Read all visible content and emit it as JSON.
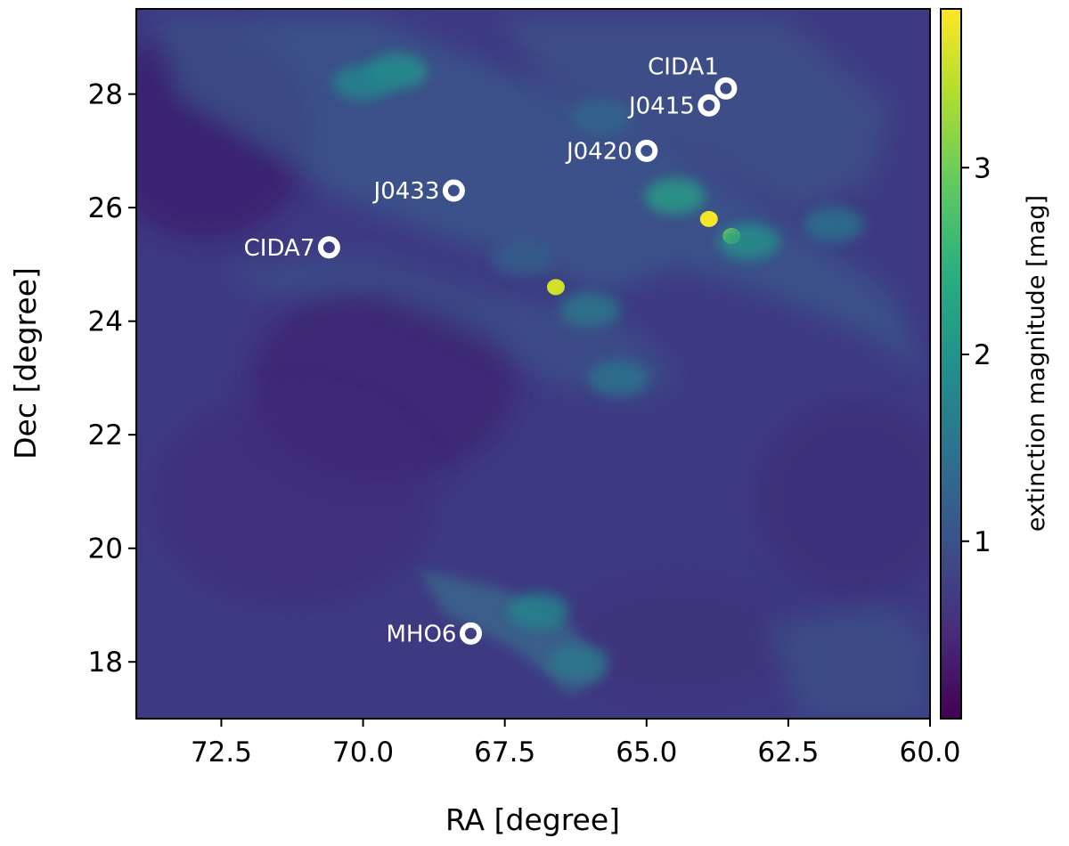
{
  "chart_data": {
    "type": "heatmap",
    "title": "",
    "xlabel": "RA [degree]",
    "ylabel": "Dec [degree]",
    "xlim": [
      74.0,
      60.0
    ],
    "ylim": [
      17.0,
      29.5
    ],
    "x_ticks": [
      72.5,
      70.0,
      67.5,
      65.0,
      62.5,
      60.0
    ],
    "x_tick_labels": [
      "72.5",
      "70.0",
      "67.5",
      "65.0",
      "62.5",
      "60.0"
    ],
    "y_ticks": [
      18,
      20,
      22,
      24,
      26,
      28
    ],
    "y_tick_labels": [
      "18",
      "20",
      "22",
      "24",
      "26",
      "28"
    ],
    "colorbar": {
      "label": "extinction magnitude [mag]",
      "range": [
        0.05,
        3.85
      ],
      "ticks": [
        1,
        2,
        3
      ],
      "tick_labels": [
        "1",
        "2",
        "3"
      ],
      "colormap": "viridis",
      "colors": [
        "#440154",
        "#472d7b",
        "#3b528b",
        "#2c728e",
        "#21918c",
        "#28ae80",
        "#5ec962",
        "#addc30",
        "#fde725"
      ]
    },
    "features": [
      {
        "ra": 63.9,
        "dec": 25.8,
        "value": 3.8
      },
      {
        "ra": 63.5,
        "dec": 25.5,
        "value": 3.1
      },
      {
        "ra": 66.6,
        "dec": 24.6,
        "value": 3.6
      },
      {
        "ra": 64.5,
        "dec": 26.2,
        "value": 2.2
      },
      {
        "ra": 63.2,
        "dec": 25.4,
        "value": 2.0
      },
      {
        "ra": 69.4,
        "dec": 28.4,
        "value": 2.0
      },
      {
        "ra": 70.0,
        "dec": 28.2,
        "value": 1.8
      },
      {
        "ra": 66.9,
        "dec": 18.9,
        "value": 1.8
      },
      {
        "ra": 66.2,
        "dec": 18.0,
        "value": 1.6
      },
      {
        "ra": 65.5,
        "dec": 23.0,
        "value": 1.5
      },
      {
        "ra": 66.0,
        "dec": 24.2,
        "value": 1.6
      },
      {
        "ra": 61.7,
        "dec": 25.7,
        "value": 1.5
      },
      {
        "ra": 65.8,
        "dec": 27.6,
        "value": 1.3
      },
      {
        "ra": 67.2,
        "dec": 25.1,
        "value": 1.2
      }
    ],
    "sources": [
      {
        "name": "CIDA1",
        "ra": 63.6,
        "dec": 28.1,
        "label_side": "above-left"
      },
      {
        "name": "J0415",
        "ra": 63.9,
        "dec": 27.8,
        "label_side": "left"
      },
      {
        "name": "J0420",
        "ra": 65.0,
        "dec": 27.0,
        "label_side": "left"
      },
      {
        "name": "J0433",
        "ra": 68.4,
        "dec": 26.3,
        "label_side": "left"
      },
      {
        "name": "CIDA7",
        "ra": 70.6,
        "dec": 25.3,
        "label_side": "left"
      },
      {
        "name": "MHO6",
        "ra": 68.1,
        "dec": 18.5,
        "label_side": "left"
      }
    ]
  }
}
